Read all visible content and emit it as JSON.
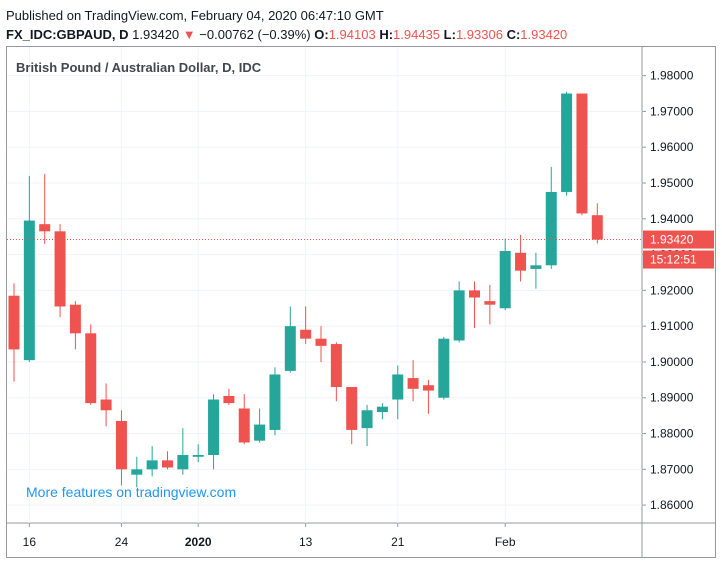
{
  "header": {
    "published": "Published on TradingView.com, February 04, 2020 06:47:10 GMT",
    "symbol": "FX_IDC:GBPAUD, D",
    "last": "1.93420",
    "change_arrow": "▼",
    "change": "−0.00762 (−0.39%)",
    "o_label": "O:",
    "o": "1.94103",
    "h_label": "H:",
    "h": "1.94435",
    "l_label": "L:",
    "l": "1.93306",
    "c_label": "C:",
    "c": "1.93420"
  },
  "watermark": "More features on tradingview.com",
  "colors": {
    "up": "#26a69a",
    "down": "#ef5350",
    "grid": "#f0f3fa",
    "axis": "#9598a1"
  },
  "chart_data": {
    "type": "candlestick",
    "title": "British Pound / Australian Dollar, D, IDC",
    "ylim": [
      1.855,
      1.988
    ],
    "yticks": [
      "1.86000",
      "1.87000",
      "1.88000",
      "1.89000",
      "1.90000",
      "1.91000",
      "1.92000",
      "1.93000",
      "1.94000",
      "1.95000",
      "1.96000",
      "1.97000",
      "1.98000"
    ],
    "xticks": [
      {
        "label": "16",
        "index": 1
      },
      {
        "label": "24",
        "index": 7
      },
      {
        "label": "2020",
        "index": 12,
        "bold": true
      },
      {
        "label": "13",
        "index": 19
      },
      {
        "label": "21",
        "index": 25
      },
      {
        "label": "Feb",
        "index": 32
      }
    ],
    "last_price_label": "1.93420",
    "countdown_label": "15:12:51",
    "last_price": 1.9342,
    "candles": [
      {
        "o": 1.9185,
        "h": 1.922,
        "l": 1.8945,
        "c": 1.9035
      },
      {
        "o": 1.9005,
        "h": 1.952,
        "l": 1.9,
        "c": 1.9395
      },
      {
        "o": 1.9385,
        "h": 1.9525,
        "l": 1.933,
        "c": 1.9365
      },
      {
        "o": 1.9365,
        "h": 1.9385,
        "l": 1.9125,
        "c": 1.9155
      },
      {
        "o": 1.916,
        "h": 1.917,
        "l": 1.9035,
        "c": 1.908
      },
      {
        "o": 1.908,
        "h": 1.9105,
        "l": 1.888,
        "c": 1.8885
      },
      {
        "o": 1.8895,
        "h": 1.894,
        "l": 1.882,
        "c": 1.8865
      },
      {
        "o": 1.8835,
        "h": 1.8865,
        "l": 1.8655,
        "c": 1.87
      },
      {
        "o": 1.8685,
        "h": 1.8735,
        "l": 1.865,
        "c": 1.87
      },
      {
        "o": 1.87,
        "h": 1.8765,
        "l": 1.868,
        "c": 1.8725
      },
      {
        "o": 1.8725,
        "h": 1.875,
        "l": 1.87,
        "c": 1.8705
      },
      {
        "o": 1.87,
        "h": 1.8815,
        "l": 1.8685,
        "c": 1.874
      },
      {
        "o": 1.8735,
        "h": 1.877,
        "l": 1.872,
        "c": 1.874
      },
      {
        "o": 1.874,
        "h": 1.891,
        "l": 1.87,
        "c": 1.8895
      },
      {
        "o": 1.8905,
        "h": 1.8925,
        "l": 1.888,
        "c": 1.8885
      },
      {
        "o": 1.887,
        "h": 1.891,
        "l": 1.877,
        "c": 1.8775
      },
      {
        "o": 1.878,
        "h": 1.887,
        "l": 1.8775,
        "c": 1.8825
      },
      {
        "o": 1.881,
        "h": 1.8985,
        "l": 1.8795,
        "c": 1.8965
      },
      {
        "o": 1.8975,
        "h": 1.9155,
        "l": 1.897,
        "c": 1.91
      },
      {
        "o": 1.909,
        "h": 1.9155,
        "l": 1.905,
        "c": 1.9065
      },
      {
        "o": 1.9065,
        "h": 1.91,
        "l": 1.9,
        "c": 1.9045
      },
      {
        "o": 1.905,
        "h": 1.9055,
        "l": 1.889,
        "c": 1.893
      },
      {
        "o": 1.893,
        "h": 1.893,
        "l": 1.877,
        "c": 1.881
      },
      {
        "o": 1.8815,
        "h": 1.888,
        "l": 1.8765,
        "c": 1.8865
      },
      {
        "o": 1.886,
        "h": 1.8885,
        "l": 1.884,
        "c": 1.8875
      },
      {
        "o": 1.8895,
        "h": 1.899,
        "l": 1.884,
        "c": 1.8965
      },
      {
        "o": 1.8955,
        "h": 1.9005,
        "l": 1.889,
        "c": 1.8925
      },
      {
        "o": 1.8935,
        "h": 1.895,
        "l": 1.8855,
        "c": 1.892
      },
      {
        "o": 1.89,
        "h": 1.907,
        "l": 1.8895,
        "c": 1.9065
      },
      {
        "o": 1.906,
        "h": 1.9225,
        "l": 1.9055,
        "c": 1.92
      },
      {
        "o": 1.92,
        "h": 1.9225,
        "l": 1.9095,
        "c": 1.918
      },
      {
        "o": 1.917,
        "h": 1.9215,
        "l": 1.9105,
        "c": 1.916
      },
      {
        "o": 1.915,
        "h": 1.9345,
        "l": 1.9145,
        "c": 1.931
      },
      {
        "o": 1.9305,
        "h": 1.9355,
        "l": 1.9225,
        "c": 1.9255
      },
      {
        "o": 1.926,
        "h": 1.9305,
        "l": 1.9205,
        "c": 1.927
      },
      {
        "o": 1.927,
        "h": 1.9545,
        "l": 1.926,
        "c": 1.9475
      },
      {
        "o": 1.9475,
        "h": 1.9755,
        "l": 1.9465,
        "c": 1.975
      },
      {
        "o": 1.975,
        "h": 1.975,
        "l": 1.941,
        "c": 1.9415
      },
      {
        "o": 1.941,
        "h": 1.9443,
        "l": 1.9331,
        "c": 1.9342
      }
    ]
  }
}
